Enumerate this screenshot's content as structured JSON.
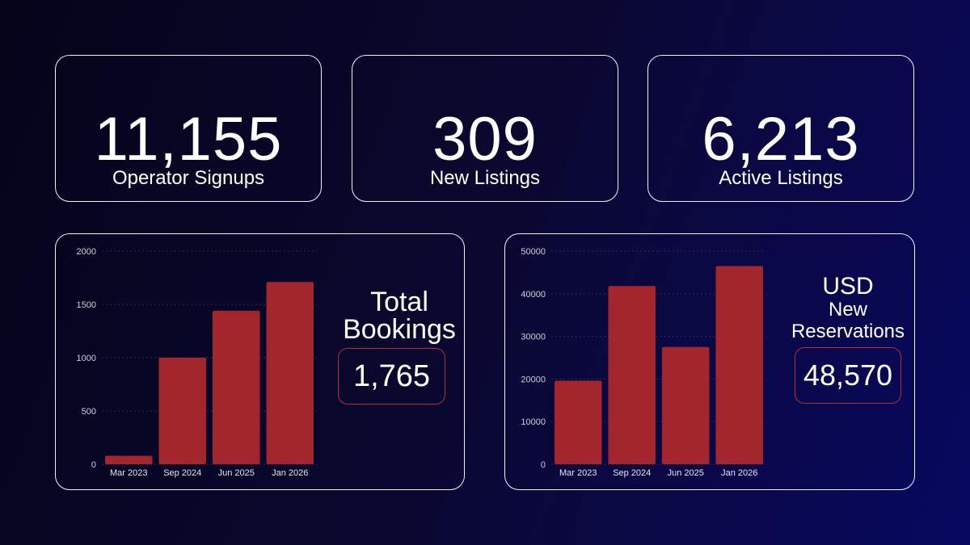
{
  "stats": [
    {
      "value": "11,155",
      "label": "Operator Signups"
    },
    {
      "value": "309",
      "label": "New Listings"
    },
    {
      "value": "6,213",
      "label": "Active Listings"
    }
  ],
  "colors": {
    "bar": "#a3262d",
    "panel_border": "#f4f4f8",
    "highlight_border": "#b23030"
  },
  "chart_data": [
    {
      "type": "bar",
      "title": "Total Bookings",
      "categories": [
        "Mar 2023",
        "Sep 2024",
        "Jun 2025",
        "Jan 2026"
      ],
      "values": [
        80,
        1000,
        1440,
        1710
      ],
      "ylim": [
        0,
        2000
      ],
      "yticks": [
        0,
        500,
        1000,
        1500,
        2000
      ],
      "yticks_labels": [
        "0",
        "500",
        "1000",
        "1500",
        "2000"
      ],
      "highlight": "1,765"
    },
    {
      "type": "bar",
      "title_line1": "USD",
      "title_line2": "New",
      "title_line3": "Reservations",
      "categories": [
        "Mar 2023",
        "Sep 2024",
        "Jun 2025",
        "Jan 2026"
      ],
      "values": [
        19600,
        41800,
        27500,
        46500
      ],
      "ylim": [
        0,
        50000
      ],
      "yticks": [
        0,
        10000,
        20000,
        30000,
        40000,
        50000
      ],
      "yticks_labels": [
        "0",
        "10000",
        "20000",
        "30000",
        "40000",
        "50000"
      ],
      "highlight": "48,570"
    }
  ]
}
